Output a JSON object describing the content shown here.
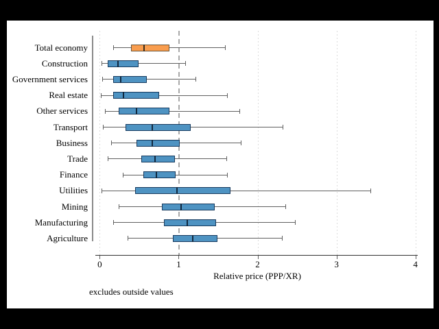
{
  "window": {
    "background": "#000000",
    "panel_background": "#ffffff"
  },
  "chart_data": {
    "type": "box",
    "orientation": "horizontal",
    "title": "",
    "xlabel": "Relative price (PPP/XR)",
    "note": "excludes outside values",
    "xlim": [
      0,
      4
    ],
    "xticks": [
      0,
      1,
      2,
      3,
      4
    ],
    "refline_x": 1,
    "grid": "dotted-vertical-at-ticks",
    "legend": "none",
    "categories": [
      "Total economy",
      "Construction",
      "Government services",
      "Real estate",
      "Other services",
      "Transport",
      "Business",
      "Trade",
      "Finance",
      "Utilities",
      "Mining",
      "Manufacturing",
      "Agriculture"
    ],
    "boxes": [
      {
        "category": "Total economy",
        "whisker_low": 0.17,
        "q1": 0.4,
        "median": 0.56,
        "q3": 0.88,
        "whisker_high": 1.59,
        "highlight": true
      },
      {
        "category": "Construction",
        "whisker_low": 0.02,
        "q1": 0.1,
        "median": 0.23,
        "q3": 0.49,
        "whisker_high": 1.08,
        "highlight": false
      },
      {
        "category": "Government services",
        "whisker_low": 0.03,
        "q1": 0.17,
        "median": 0.27,
        "q3": 0.6,
        "whisker_high": 1.21,
        "highlight": false
      },
      {
        "category": "Real estate",
        "whisker_low": 0.01,
        "q1": 0.17,
        "median": 0.3,
        "q3": 0.75,
        "whisker_high": 1.61,
        "highlight": false
      },
      {
        "category": "Other services",
        "whisker_low": 0.07,
        "q1": 0.24,
        "median": 0.47,
        "q3": 0.88,
        "whisker_high": 1.77,
        "highlight": false
      },
      {
        "category": "Transport",
        "whisker_low": 0.04,
        "q1": 0.33,
        "median": 0.67,
        "q3": 1.15,
        "whisker_high": 2.32,
        "highlight": false
      },
      {
        "category": "Business",
        "whisker_low": 0.14,
        "q1": 0.47,
        "median": 0.67,
        "q3": 1.01,
        "whisker_high": 1.79,
        "highlight": false
      },
      {
        "category": "Trade",
        "whisker_low": 0.1,
        "q1": 0.53,
        "median": 0.7,
        "q3": 0.95,
        "whisker_high": 1.6,
        "highlight": false
      },
      {
        "category": "Finance",
        "whisker_low": 0.29,
        "q1": 0.55,
        "median": 0.72,
        "q3": 0.96,
        "whisker_high": 1.61,
        "highlight": false
      },
      {
        "category": "Utilities",
        "whisker_low": 0.02,
        "q1": 0.45,
        "median": 0.98,
        "q3": 1.66,
        "whisker_high": 3.43,
        "highlight": false
      },
      {
        "category": "Mining",
        "whisker_low": 0.24,
        "q1": 0.79,
        "median": 1.03,
        "q3": 1.46,
        "whisker_high": 2.35,
        "highlight": false
      },
      {
        "category": "Manufacturing",
        "whisker_low": 0.17,
        "q1": 0.81,
        "median": 1.11,
        "q3": 1.47,
        "whisker_high": 2.47,
        "highlight": false
      },
      {
        "category": "Agriculture",
        "whisker_low": 0.35,
        "q1": 0.93,
        "median": 1.18,
        "q3": 1.49,
        "whisker_high": 2.31,
        "highlight": false
      }
    ],
    "colors": {
      "box_fill": "#4e93c2",
      "box_border": "#173a5e",
      "box_median": "#10283f",
      "highlight_fill": "#f99d4e",
      "highlight_border": "#6b5436",
      "highlight_median": "#3a2d1a",
      "whisker": "#5f5f5f",
      "gridline": "#dcdcdc",
      "refline": "#a8a8a8",
      "x_axis": "#303030",
      "y_axis": "#8a8a8a",
      "text": "#000000"
    }
  }
}
